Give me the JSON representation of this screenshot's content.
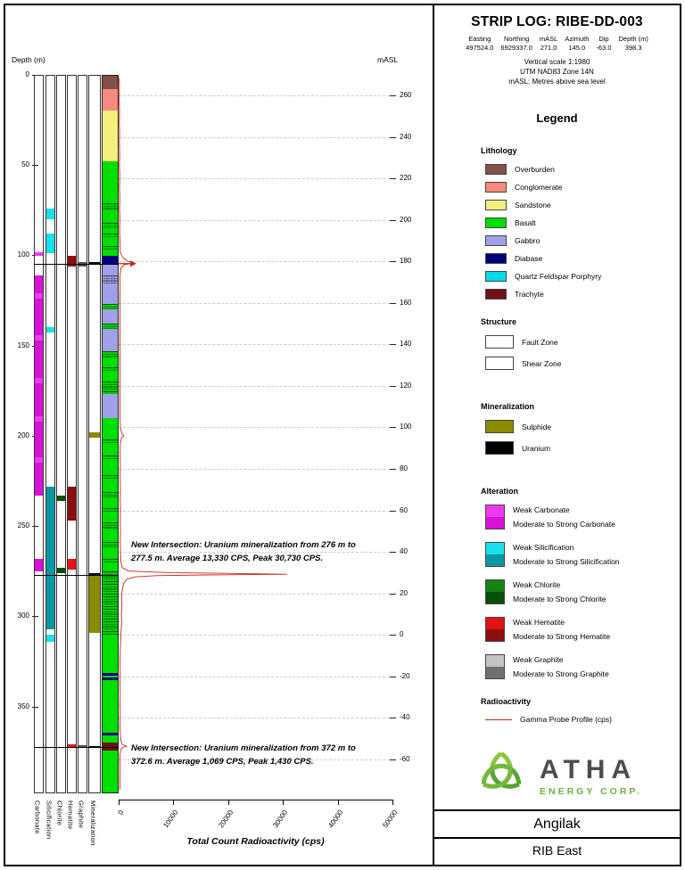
{
  "header": {
    "title": "STRIP LOG: RIBE-DD-003",
    "fields": [
      {
        "label": "Easting",
        "value": "497524.0"
      },
      {
        "label": "Northing",
        "value": "6929337.0"
      },
      {
        "label": "mASL",
        "value": "271.0"
      },
      {
        "label": "Azimuth",
        "value": "145.0"
      },
      {
        "label": "Dip",
        "value": "-63.0"
      },
      {
        "label": "Depth (m)",
        "value": "398.3"
      }
    ],
    "notes": [
      "Vertical scale 1:1980",
      "UTM NAD83 Zone 14N",
      "mASL: Metres above sea level"
    ]
  },
  "legend": {
    "title": "Legend",
    "lithology": {
      "title": "Lithology",
      "items": [
        {
          "label": "Overburden",
          "color": "#845047"
        },
        {
          "label": "Conglomerate",
          "color": "#f48a80"
        },
        {
          "label": "Sandstone",
          "color": "#f3ef7d"
        },
        {
          "label": "Basalt",
          "color": "#00df00"
        },
        {
          "label": "Gabbro",
          "color": "#a0a0e8"
        },
        {
          "label": "Diabase",
          "color": "#000080"
        },
        {
          "label": "Quartz Feldspar Porphyry",
          "color": "#00dcec"
        },
        {
          "label": "Trachyte",
          "color": "#6f1012"
        }
      ]
    },
    "structure": {
      "title": "Structure",
      "items": [
        {
          "label": "Fault Zone",
          "pattern": "fault"
        },
        {
          "label": "Shear Zone",
          "pattern": "shear"
        }
      ]
    },
    "mineralization": {
      "title": "Mineralization",
      "items": [
        {
          "label": "Sulphide",
          "color": "#8b8b00"
        },
        {
          "label": "Uranium",
          "color": "#000000"
        }
      ]
    },
    "alteration": {
      "title": "Alteration",
      "items": [
        {
          "weak_label": "Weak Carbonate",
          "strong_label": "Moderate to Strong Carbonate",
          "weak_color": "#ee3aee",
          "strong_color": "#d812d8"
        },
        {
          "weak_label": "Weak Silicification",
          "strong_label": "Moderate to Strong Silicification",
          "weak_color": "#18e0ec",
          "strong_color": "#0b98a2"
        },
        {
          "weak_label": "Weak Chlorite",
          "strong_label": "Moderate to Strong Chlorite",
          "weak_color": "#128412",
          "strong_color": "#06500a"
        },
        {
          "weak_label": "Weak Hematite",
          "strong_label": "Moderate to Strong Hematite",
          "weak_color": "#e01414",
          "strong_color": "#8c0f0f"
        },
        {
          "weak_label": "Weak Graphite",
          "strong_label": "Moderate to Strong Graphite",
          "weak_color": "#c4c4c4",
          "strong_color": "#6f6f6f"
        }
      ]
    },
    "radioactivity": {
      "title": "Radioactivity",
      "items": [
        {
          "label": "Gamma Probe Profile (cps)",
          "color": "#c62817"
        }
      ]
    }
  },
  "logo": {
    "name": "ATHA",
    "sub": "ENERGY CORP.",
    "green": "#6cb33f",
    "dark": "#4d4d4f"
  },
  "footer": {
    "line1": "Angilak",
    "line2": "RIB East"
  },
  "chart_data": {
    "type": "strip-log",
    "depth_axis": {
      "label": "Depth (m)",
      "ticks": [
        0,
        50,
        100,
        150,
        200,
        250,
        300,
        350
      ],
      "max_depth": 398.3
    },
    "masl_axis": {
      "label": "mASL",
      "ticks": [
        260,
        240,
        220,
        200,
        180,
        160,
        140,
        120,
        100,
        80,
        60,
        40,
        20,
        0,
        -20,
        -40,
        -60
      ]
    },
    "radioactivity_axis": {
      "label": "Total Count Radioactivity (cps)",
      "ticks": [
        0,
        10000,
        20000,
        30000,
        40000,
        50000
      ],
      "max": 50000
    },
    "tracks": [
      {
        "name": "Carbonate",
        "weak_color": "#ee3aee",
        "strong_color": "#d812d8",
        "intervals": [
          {
            "from": 98.5,
            "to": 100.5,
            "grade": "weak"
          },
          {
            "from": 111,
            "to": 121,
            "grade": "strong"
          },
          {
            "from": 121,
            "to": 124,
            "grade": "weak"
          },
          {
            "from": 124,
            "to": 144,
            "grade": "strong"
          },
          {
            "from": 144,
            "to": 147,
            "grade": "weak"
          },
          {
            "from": 147,
            "to": 168,
            "grade": "strong"
          },
          {
            "from": 168,
            "to": 171,
            "grade": "weak"
          },
          {
            "from": 171,
            "to": 189,
            "grade": "strong"
          },
          {
            "from": 189,
            "to": 192,
            "grade": "weak"
          },
          {
            "from": 192,
            "to": 212,
            "grade": "strong"
          },
          {
            "from": 212,
            "to": 215,
            "grade": "weak"
          },
          {
            "from": 215,
            "to": 233,
            "grade": "strong"
          },
          {
            "from": 268,
            "to": 275,
            "grade": "strong"
          }
        ]
      },
      {
        "name": "Silicification",
        "weak_color": "#18e0ec",
        "strong_color": "#0b98a2",
        "intervals": [
          {
            "from": 74,
            "to": 80,
            "grade": "weak"
          },
          {
            "from": 88,
            "to": 99,
            "grade": "weak"
          },
          {
            "from": 140,
            "to": 143,
            "grade": "weak"
          },
          {
            "from": 228,
            "to": 307,
            "grade": "strong"
          },
          {
            "from": 310,
            "to": 314,
            "grade": "weak"
          }
        ]
      },
      {
        "name": "Chlorite",
        "weak_color": "#128412",
        "strong_color": "#06500a",
        "intervals": [
          {
            "from": 233,
            "to": 236,
            "grade": "strong"
          },
          {
            "from": 273,
            "to": 276,
            "grade": "strong"
          }
        ]
      },
      {
        "name": "Hematite",
        "weak_color": "#e01414",
        "strong_color": "#8c0f0f",
        "intervals": [
          {
            "from": 100.5,
            "to": 106,
            "grade": "strong"
          },
          {
            "from": 228,
            "to": 247,
            "grade": "strong"
          },
          {
            "from": 268,
            "to": 274,
            "grade": "weak"
          },
          {
            "from": 371,
            "to": 373,
            "grade": "weak"
          }
        ]
      },
      {
        "name": "Graphite",
        "weak_color": "#c4c4c4",
        "strong_color": "#565656",
        "intervals": [
          {
            "from": 103.5,
            "to": 106,
            "grade": "strong"
          },
          {
            "from": 371.5,
            "to": 373,
            "grade": "strong"
          }
        ]
      },
      {
        "name": "Mineralization",
        "colors": {
          "Sulphide": "#8b8b00",
          "Uranium": "#000000"
        },
        "intervals": [
          {
            "from": 103.8,
            "to": 105,
            "type": "Uranium"
          },
          {
            "from": 198,
            "to": 201,
            "type": "Sulphide"
          },
          {
            "from": 276,
            "to": 277.5,
            "type": "Uranium"
          },
          {
            "from": 277.5,
            "to": 309,
            "type": "Sulphide"
          },
          {
            "from": 372,
            "to": 372.6,
            "type": "Uranium"
          }
        ]
      }
    ],
    "lithology_track": {
      "name": "Lithology",
      "intervals": [
        {
          "from": 0,
          "to": 8,
          "unit": "Overburden"
        },
        {
          "from": 8,
          "to": 20,
          "unit": "Conglomerate"
        },
        {
          "from": 20,
          "to": 48,
          "unit": "Sandstone"
        },
        {
          "from": 48,
          "to": 71,
          "unit": "Basalt"
        },
        {
          "from": 71,
          "to": 75,
          "unit": "Basalt",
          "fault": true
        },
        {
          "from": 75,
          "to": 82,
          "unit": "Basalt"
        },
        {
          "from": 82,
          "to": 85,
          "unit": "Basalt",
          "fault": true
        },
        {
          "from": 85,
          "to": 88,
          "unit": "Basalt"
        },
        {
          "from": 88,
          "to": 90,
          "unit": "Basalt",
          "fault": true
        },
        {
          "from": 90,
          "to": 95,
          "unit": "Basalt"
        },
        {
          "from": 95,
          "to": 97,
          "unit": "Basalt",
          "fault": true
        },
        {
          "from": 97,
          "to": 100.5,
          "unit": "Basalt"
        },
        {
          "from": 100.5,
          "to": 105,
          "unit": "Diabase"
        },
        {
          "from": 105,
          "to": 111,
          "unit": "Gabbro"
        },
        {
          "from": 111,
          "to": 116,
          "unit": "Gabbro",
          "fault": true
        },
        {
          "from": 116,
          "to": 127,
          "unit": "Gabbro"
        },
        {
          "from": 127,
          "to": 130,
          "unit": "Basalt",
          "fault": true
        },
        {
          "from": 130,
          "to": 138,
          "unit": "Gabbro"
        },
        {
          "from": 138,
          "to": 141,
          "unit": "Basalt",
          "fault": true
        },
        {
          "from": 141,
          "to": 153,
          "unit": "Gabbro"
        },
        {
          "from": 153,
          "to": 157,
          "unit": "Basalt",
          "fault": true
        },
        {
          "from": 157,
          "to": 162,
          "unit": "Basalt"
        },
        {
          "from": 162,
          "to": 164,
          "unit": "Basalt",
          "fault": true
        },
        {
          "from": 164,
          "to": 170,
          "unit": "Basalt"
        },
        {
          "from": 170,
          "to": 177,
          "unit": "Basalt",
          "fault": true
        },
        {
          "from": 177,
          "to": 190,
          "unit": "Gabbro"
        },
        {
          "from": 190,
          "to": 202,
          "unit": "Basalt"
        },
        {
          "from": 202,
          "to": 204,
          "unit": "Basalt",
          "fault": true
        },
        {
          "from": 204,
          "to": 211,
          "unit": "Basalt"
        },
        {
          "from": 211,
          "to": 213,
          "unit": "Basalt",
          "fault": true
        },
        {
          "from": 213,
          "to": 222,
          "unit": "Basalt"
        },
        {
          "from": 222,
          "to": 224,
          "unit": "Basalt",
          "fault": true
        },
        {
          "from": 224,
          "to": 231,
          "unit": "Basalt"
        },
        {
          "from": 231,
          "to": 234,
          "unit": "Basalt",
          "fault": true
        },
        {
          "from": 234,
          "to": 240,
          "unit": "Basalt"
        },
        {
          "from": 240,
          "to": 242,
          "unit": "Basalt",
          "fault": true
        },
        {
          "from": 242,
          "to": 248,
          "unit": "Basalt"
        },
        {
          "from": 248,
          "to": 252,
          "unit": "Basalt",
          "fault": true
        },
        {
          "from": 252,
          "to": 259,
          "unit": "Basalt"
        },
        {
          "from": 259,
          "to": 262,
          "unit": "Basalt",
          "fault": true
        },
        {
          "from": 262,
          "to": 268,
          "unit": "Basalt"
        },
        {
          "from": 268,
          "to": 270,
          "unit": "Basalt",
          "fault": true
        },
        {
          "from": 270,
          "to": 275,
          "unit": "Basalt"
        },
        {
          "from": 275,
          "to": 310,
          "unit": "Basalt",
          "fault": true
        },
        {
          "from": 310,
          "to": 331.5,
          "unit": "Basalt"
        },
        {
          "from": 331.5,
          "to": 333,
          "unit": "Diabase"
        },
        {
          "from": 333,
          "to": 334,
          "unit": "Basalt"
        },
        {
          "from": 334,
          "to": 335.5,
          "unit": "Diabase"
        },
        {
          "from": 335.5,
          "to": 364.5,
          "unit": "Basalt"
        },
        {
          "from": 364.5,
          "to": 366,
          "unit": "Diabase"
        },
        {
          "from": 366,
          "to": 370,
          "unit": "Basalt"
        },
        {
          "from": 370,
          "to": 374.5,
          "unit": "Trachyte"
        },
        {
          "from": 374.5,
          "to": 398.3,
          "unit": "Basalt"
        }
      ]
    },
    "markers": [
      {
        "depth": 104.7
      },
      {
        "depth": 276.9
      },
      {
        "depth": 372.3
      }
    ],
    "gamma": {
      "label": "Gamma Probe Profile (cps)",
      "color": "#c62817",
      "points": [
        [
          2,
          120
        ],
        [
          8,
          150
        ],
        [
          14,
          110
        ],
        [
          20,
          170
        ],
        [
          26,
          130
        ],
        [
          32,
          180
        ],
        [
          38,
          140
        ],
        [
          44,
          190
        ],
        [
          50,
          150
        ],
        [
          56,
          210
        ],
        [
          62,
          160
        ],
        [
          68,
          220
        ],
        [
          74,
          170
        ],
        [
          80,
          230
        ],
        [
          86,
          180
        ],
        [
          92,
          240
        ],
        [
          98,
          300
        ],
        [
          101,
          700
        ],
        [
          103,
          1500
        ],
        [
          104.3,
          2600
        ],
        [
          105.2,
          1000
        ],
        [
          107,
          420
        ],
        [
          112,
          240
        ],
        [
          118,
          280
        ],
        [
          124,
          220
        ],
        [
          130,
          270
        ],
        [
          136,
          220
        ],
        [
          142,
          280
        ],
        [
          148,
          230
        ],
        [
          154,
          270
        ],
        [
          160,
          220
        ],
        [
          166,
          270
        ],
        [
          172,
          230
        ],
        [
          178,
          260
        ],
        [
          184,
          220
        ],
        [
          190,
          260
        ],
        [
          196,
          320
        ],
        [
          199,
          650
        ],
        [
          200,
          950
        ],
        [
          201,
          520
        ],
        [
          205,
          300
        ],
        [
          211,
          270
        ],
        [
          217,
          310
        ],
        [
          223,
          270
        ],
        [
          229,
          330
        ],
        [
          235,
          290
        ],
        [
          241,
          340
        ],
        [
          247,
          290
        ],
        [
          253,
          340
        ],
        [
          259,
          300
        ],
        [
          265,
          360
        ],
        [
          270,
          430
        ],
        [
          273,
          650
        ],
        [
          275,
          1800
        ],
        [
          275.8,
          9500
        ],
        [
          276.3,
          22000
        ],
        [
          276.7,
          30730
        ],
        [
          277.1,
          15500
        ],
        [
          277.5,
          6800
        ],
        [
          278.2,
          3000
        ],
        [
          279.5,
          1500
        ],
        [
          282,
          900
        ],
        [
          286,
          640
        ],
        [
          290,
          560
        ],
        [
          294,
          620
        ],
        [
          298,
          500
        ],
        [
          303,
          560
        ],
        [
          308,
          460
        ],
        [
          313,
          380
        ],
        [
          319,
          300
        ],
        [
          325,
          260
        ],
        [
          331,
          300
        ],
        [
          337,
          260
        ],
        [
          343,
          300
        ],
        [
          349,
          255
        ],
        [
          355,
          290
        ],
        [
          361,
          250
        ],
        [
          366,
          320
        ],
        [
          369,
          400
        ],
        [
          371,
          650
        ],
        [
          372.1,
          1430
        ],
        [
          372.7,
          750
        ],
        [
          374,
          380
        ],
        [
          377,
          250
        ],
        [
          382,
          220
        ],
        [
          387,
          260
        ],
        [
          392,
          225
        ],
        [
          396,
          235
        ]
      ]
    },
    "gamma_offscale_arrow_depth": 104.6,
    "annotations": [
      {
        "depth": 256.8,
        "text": "New Intersection: Uranium mineralization from 276 m to 277.5 m. Average 13,330 CPS, Peak 30,730 CPS."
      },
      {
        "depth": 369.3,
        "text": "New Intersection: Uranium mineralization from 372 m to 372.6 m. Average 1,069 CPS, Peak 1,430 CPS."
      }
    ]
  }
}
